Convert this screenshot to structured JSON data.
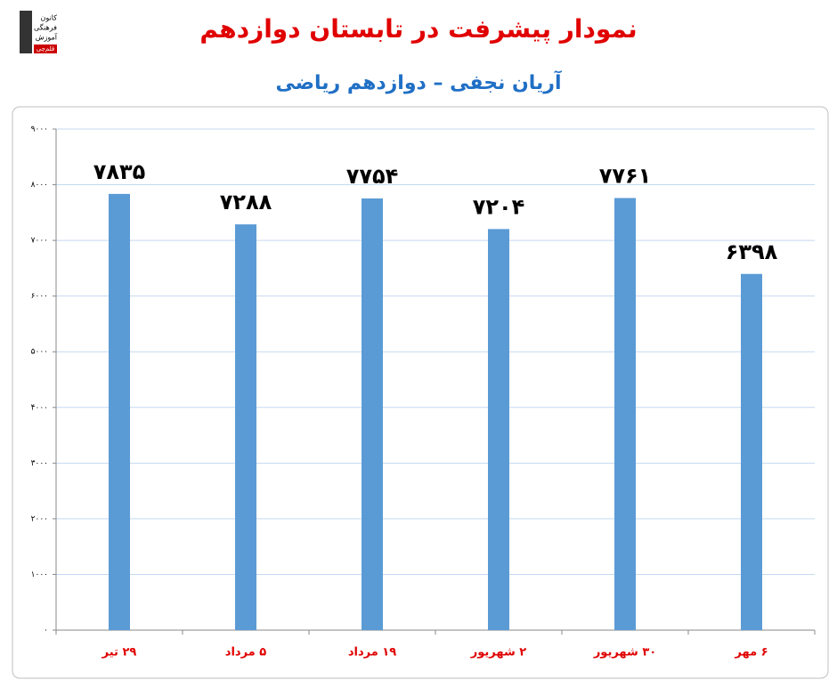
{
  "chart_data": {
    "type": "bar",
    "title": "نمودار پیشرفت در تابستان دوازدهم",
    "subtitle": "آریان نجفی – دوازدهم ریاضی",
    "logo": [
      "کانون",
      "فرهنگی",
      "آموزش",
      "قلم‌چی"
    ],
    "categories": [
      "۲۹ تیر",
      "۵ مرداد",
      "۱۹ مرداد",
      "۲ شهریور",
      "۳۰ شهریور",
      "۶ مهر"
    ],
    "values": [
      7835,
      7288,
      7754,
      7204,
      7761,
      6398
    ],
    "value_labels": [
      "۷۸۳۵",
      "۷۲۸۸",
      "۷۷۵۴",
      "۷۲۰۴",
      "۷۷۶۱",
      "۶۳۹۸"
    ],
    "color": "#5b9bd5",
    "ylim": [
      0,
      9000
    ],
    "yticks": [
      {
        "value": 0,
        "label": "۰"
      },
      {
        "value": 1000,
        "label": "۱۰۰۰"
      },
      {
        "value": 2000,
        "label": "۲۰۰۰"
      },
      {
        "value": 3000,
        "label": "۳۰۰۰"
      },
      {
        "value": 4000,
        "label": "۴۰۰۰"
      },
      {
        "value": 5000,
        "label": "۵۰۰۰"
      },
      {
        "value": 6000,
        "label": "۶۰۰۰"
      },
      {
        "value": 7000,
        "label": "۷۰۰۰"
      },
      {
        "value": 8000,
        "label": "۸۰۰۰"
      },
      {
        "value": 9000,
        "label": "۹۰۰۰"
      }
    ],
    "grid": true
  }
}
